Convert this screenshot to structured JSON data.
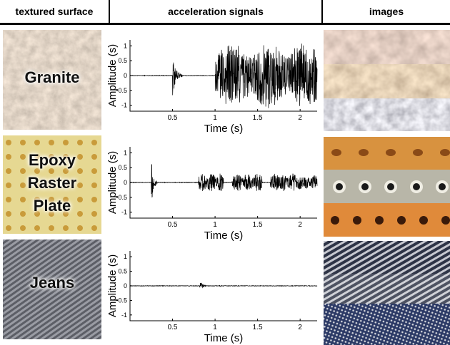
{
  "header": {
    "col1": "textured surface",
    "col2": "acceleration signals",
    "col3": "images"
  },
  "rows": [
    {
      "surface": [
        "Granite"
      ]
    },
    {
      "surface": [
        "Epoxy",
        "Raster",
        "Plate"
      ]
    },
    {
      "surface": [
        "Jeans"
      ]
    }
  ],
  "chart_data": [
    {
      "type": "line",
      "surface": "Granite",
      "xlabel": "Time (s)",
      "ylabel": "Amplitude (s)",
      "xlim": [
        0,
        2.2
      ],
      "ylim": [
        -1.2,
        1.2
      ],
      "xticks": [
        "0.5",
        "1",
        "1.5",
        "2"
      ],
      "yticks": [
        "1",
        "0.5",
        "0",
        "-0.5",
        "-1"
      ],
      "segments": [
        {
          "start": 0.5,
          "end": 0.62,
          "amplitude": 0.7
        },
        {
          "start": 1.0,
          "end": 2.2,
          "amplitude": 1.1
        }
      ]
    },
    {
      "type": "line",
      "surface": "Epoxy Raster Plate",
      "xlabel": "Time (s)",
      "ylabel": "Amplitude (s)",
      "xlim": [
        0,
        2.2
      ],
      "ylim": [
        -1.2,
        1.2
      ],
      "xticks": [
        "0.5",
        "1",
        "1.5",
        "2"
      ],
      "yticks": [
        "1",
        "0.5",
        "0",
        "-0.5",
        "-1"
      ],
      "segments": [
        {
          "start": 0.25,
          "end": 0.32,
          "amplitude": 0.95
        },
        {
          "start": 0.8,
          "end": 1.1,
          "amplitude": 0.3
        },
        {
          "start": 1.2,
          "end": 1.55,
          "amplitude": 0.3
        },
        {
          "start": 1.65,
          "end": 1.95,
          "amplitude": 0.3
        },
        {
          "start": 1.95,
          "end": 2.2,
          "amplitude": 0.25
        }
      ]
    },
    {
      "type": "line",
      "surface": "Jeans",
      "xlabel": "Time (s)",
      "ylabel": "Amplitude (s)",
      "xlim": [
        0,
        2.2
      ],
      "ylim": [
        -1.2,
        1.2
      ],
      "xticks": [
        "0.5",
        "1",
        "1.5",
        "2"
      ],
      "yticks": [
        "1",
        "0.5",
        "0",
        "-0.5",
        "-1"
      ],
      "segments": [
        {
          "start": 0.82,
          "end": 0.9,
          "amplitude": 0.25
        },
        {
          "start": 1.05,
          "end": 1.12,
          "amplitude": 0.05
        }
      ]
    }
  ],
  "colors": {
    "granite": "#a8907a",
    "epoxy": "#e6d892",
    "jeans": "#6e7078"
  }
}
